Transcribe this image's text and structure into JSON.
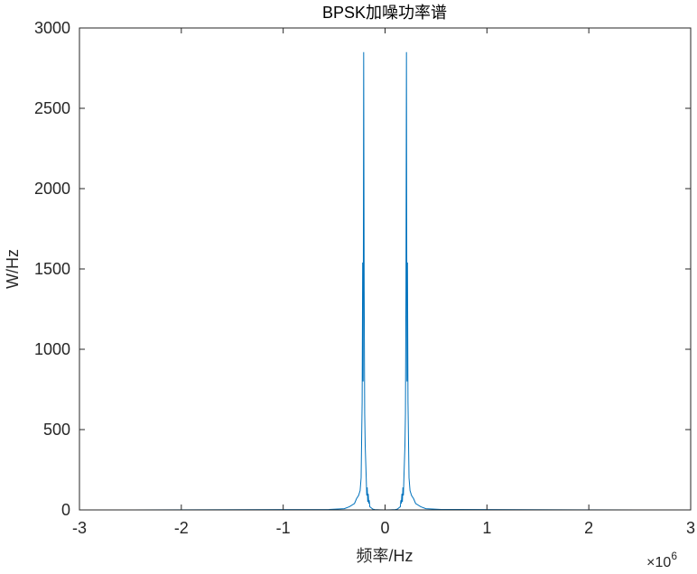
{
  "chart_data": {
    "type": "line",
    "title": "BPSK加噪功率谱",
    "xlabel": "频率/Hz",
    "ylabel": "W/Hz",
    "x_exponent_label": {
      "prefix": "×10",
      "exponent": "6"
    },
    "xlim": [
      -3,
      3
    ],
    "ylim": [
      0,
      3000
    ],
    "x_ticks": [
      "-3",
      "-2",
      "-1",
      "0",
      "1",
      "2",
      "3"
    ],
    "y_ticks": [
      "0",
      "500",
      "1000",
      "1500",
      "2000",
      "2500",
      "3000"
    ],
    "grid": false,
    "line_color": "#0072BD",
    "series": [
      {
        "x": [
          -2.5,
          -0.55,
          -0.4,
          -0.35,
          -0.3,
          -0.28,
          -0.26,
          -0.245,
          -0.235,
          -0.225,
          -0.22,
          -0.215,
          -0.21,
          -0.205,
          -0.2,
          -0.195,
          -0.19,
          -0.185,
          -0.18,
          -0.175,
          -0.17,
          -0.165,
          -0.16,
          -0.155,
          -0.15,
          -0.14,
          -0.13,
          -0.12,
          -0.1,
          -0.05,
          0.0,
          0.05,
          0.1,
          0.12,
          0.13,
          0.14,
          0.15,
          0.155,
          0.16,
          0.165,
          0.17,
          0.175,
          0.18,
          0.185,
          0.19,
          0.195,
          0.2,
          0.205,
          0.21,
          0.215,
          0.22,
          0.225,
          0.235,
          0.245,
          0.26,
          0.28,
          0.3,
          0.35,
          0.4,
          0.55,
          2.5
        ],
        "y": [
          0,
          3,
          8,
          20,
          40,
          70,
          90,
          120,
          200,
          670,
          1540,
          800,
          2850,
          1360,
          600,
          400,
          300,
          200,
          90,
          140,
          50,
          100,
          40,
          60,
          20,
          15,
          10,
          5,
          2,
          1,
          0,
          1,
          2,
          5,
          10,
          15,
          20,
          60,
          40,
          100,
          50,
          140,
          90,
          200,
          300,
          400,
          600,
          1360,
          2850,
          800,
          1540,
          670,
          200,
          120,
          90,
          70,
          40,
          20,
          8,
          3,
          0
        ]
      }
    ]
  }
}
